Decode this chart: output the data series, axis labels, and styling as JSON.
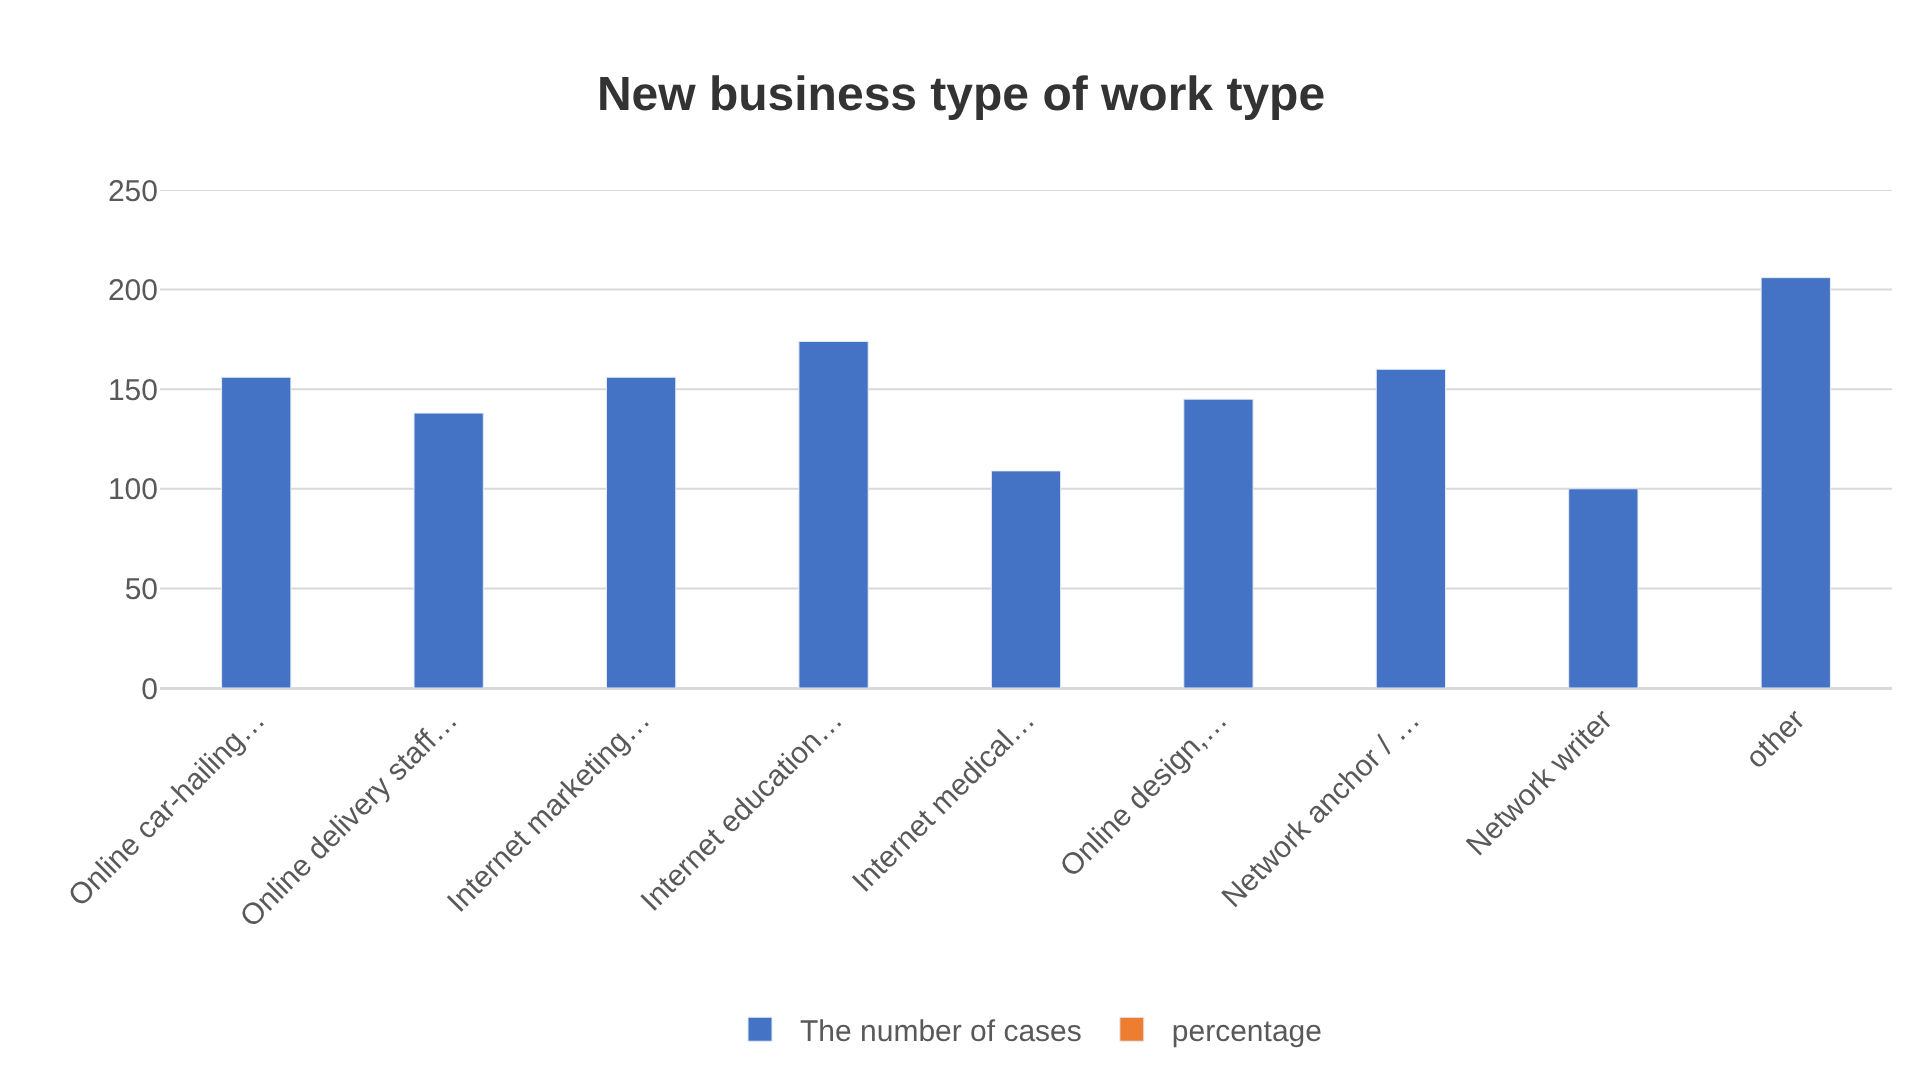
{
  "chart_data": {
    "type": "bar",
    "title": "New business type of work type",
    "categories": [
      "Online car-hailing…",
      "Online delivery staff…",
      "Internet marketing…",
      "Internet education…",
      "Internet medical…",
      "Online design,…",
      "Network anchor / …",
      "Network writer",
      "other"
    ],
    "series": [
      {
        "name": "The number of cases",
        "color": "#4472c4",
        "values": [
          156,
          138,
          156,
          174,
          109,
          145,
          160,
          100,
          206
        ]
      },
      {
        "name": "percentage",
        "color": "#ed7d31",
        "values": [
          null,
          null,
          null,
          null,
          null,
          null,
          null,
          null,
          null
        ]
      }
    ],
    "ylim": [
      0,
      250
    ],
    "yticks": [
      0,
      50,
      100,
      150,
      200,
      250
    ],
    "grid": "y",
    "legend": "bottom"
  }
}
